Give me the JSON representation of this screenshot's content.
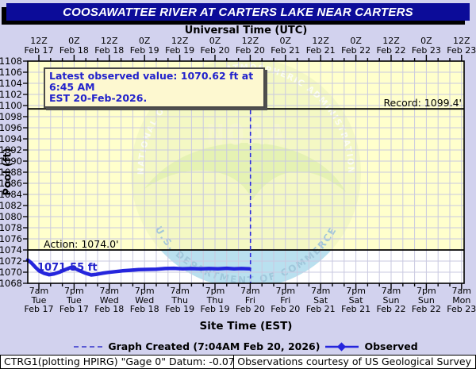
{
  "title_bar": {
    "text": "COOSAWATTEE RIVER AT CARTERS LAKE NEAR CARTERS"
  },
  "annotation_box": {
    "line1": "Latest observed value: 1070.62 ft at 6:45 AM",
    "line2": "EST 20-Feb-2026."
  },
  "legend": {
    "created_label": "Graph Created (7:04AM Feb 20, 2026)",
    "observed_label": "Observed"
  },
  "footer": {
    "left": "CTRG1(plotting HPIRG) \"Gage 0\" Datum: -0.07'",
    "right": "Observations courtesy of US Geological Survey"
  },
  "watermark": {
    "noaa_text": "NOAA",
    "arc_top": "NATIONAL OCEANIC AND ATMOSPHERIC ADMINISTRATION",
    "arc_bottom": "U.S. DEPARTMENT OF COMMERCE"
  },
  "colors": {
    "page_bg": "#d2d2ee",
    "titlebar_bg": "#0c0c99",
    "stage_yellow": "#ffffcc",
    "grid": "#c9c9e0",
    "observed": "#2525dd",
    "created_line": "#2a2ae0",
    "annotation_text": "#2222cc",
    "reference_line": "#000000",
    "wm_green": "#e9f2bc",
    "wm_bird": "#d9ecA6",
    "wm_blue": "#aedcf2",
    "wm_text": "#f7f7cf",
    "wm_arc_bottom": "#9fc6da"
  },
  "chart_data": {
    "type": "line",
    "title": "COOSAWATTEE RIVER AT CARTERS LAKE NEAR CARTERS",
    "xlabel_top": "Universal Time (UTC)",
    "xlabel_bottom": "Site Time (EST)",
    "ylabel": "Pool (ft)",
    "ylim": [
      1068,
      1108
    ],
    "y_tick_step": 2,
    "grid": true,
    "x_ticks_utc": [
      [
        "12Z",
        "Feb 17"
      ],
      [
        "0Z",
        "Feb 18"
      ],
      [
        "12Z",
        "Feb 18"
      ],
      [
        "0Z",
        "Feb 19"
      ],
      [
        "12Z",
        "Feb 19"
      ],
      [
        "0Z",
        "Feb 20"
      ],
      [
        "12Z",
        "Feb 20"
      ],
      [
        "0Z",
        "Feb 21"
      ],
      [
        "12Z",
        "Feb 21"
      ],
      [
        "0Z",
        "Feb 22"
      ],
      [
        "12Z",
        "Feb 22"
      ],
      [
        "0Z",
        "Feb 23"
      ],
      [
        "12Z",
        "Feb 23"
      ]
    ],
    "x_ticks_est": [
      [
        "7am",
        "Tue",
        "Feb 17"
      ],
      [
        "7pm",
        "Tue",
        "Feb 17"
      ],
      [
        "7am",
        "Wed",
        "Feb 18"
      ],
      [
        "7pm",
        "Wed",
        "Feb 18"
      ],
      [
        "7am",
        "Thu",
        "Feb 19"
      ],
      [
        "7pm",
        "Thu",
        "Feb 19"
      ],
      [
        "7am",
        "Fri",
        "Feb 20"
      ],
      [
        "7pm",
        "Fri",
        "Feb 20"
      ],
      [
        "7am",
        "Sat",
        "Feb 21"
      ],
      [
        "7pm",
        "Sat",
        "Feb 21"
      ],
      [
        "7am",
        "Sun",
        "Feb 22"
      ],
      [
        "7pm",
        "Sun",
        "Feb 22"
      ],
      [
        "7am",
        "Mon",
        "Feb 23"
      ]
    ],
    "reference_lines": [
      {
        "name": "record",
        "label": "Record: 1099.4'",
        "value": 1099.4,
        "label_anchor": "right"
      },
      {
        "name": "action",
        "label": "Action: 1074.0'",
        "value": 1074.0,
        "label_anchor": "left"
      }
    ],
    "point_label": "1071.55 ft",
    "latest_observed": {
      "value_ft": 1070.62,
      "time": "6:45 AM EST 20-Feb-2026"
    },
    "graph_created_hours_from_first_tick": 72.07,
    "series": [
      {
        "name": "Observed",
        "units": "ft",
        "points_t_hours_vs_ft": [
          [
            -3.8,
            1072.2
          ],
          [
            -2.6,
            1071.7
          ],
          [
            -1.2,
            1070.9
          ],
          [
            0.2,
            1070.2
          ],
          [
            1.8,
            1069.8
          ],
          [
            3.5,
            1069.55
          ],
          [
            5.2,
            1069.7
          ],
          [
            7.2,
            1070.05
          ],
          [
            9.2,
            1070.5
          ],
          [
            10.8,
            1070.85
          ],
          [
            12.2,
            1070.7
          ],
          [
            14,
            1070.25
          ],
          [
            16,
            1069.8
          ],
          [
            17.8,
            1069.5
          ],
          [
            19.5,
            1069.6
          ],
          [
            21.5,
            1069.8
          ],
          [
            23.5,
            1069.95
          ],
          [
            26,
            1070.1
          ],
          [
            28.5,
            1070.25
          ],
          [
            31,
            1070.35
          ],
          [
            34,
            1070.45
          ],
          [
            37,
            1070.5
          ],
          [
            40,
            1070.55
          ],
          [
            43,
            1070.65
          ],
          [
            46,
            1070.7
          ],
          [
            49,
            1070.6
          ],
          [
            52,
            1070.65
          ],
          [
            55,
            1070.6
          ],
          [
            58,
            1070.65
          ],
          [
            61,
            1070.6
          ],
          [
            64,
            1070.7
          ],
          [
            66.5,
            1070.6
          ],
          [
            69,
            1070.65
          ],
          [
            71.75,
            1070.62
          ]
        ]
      }
    ]
  }
}
